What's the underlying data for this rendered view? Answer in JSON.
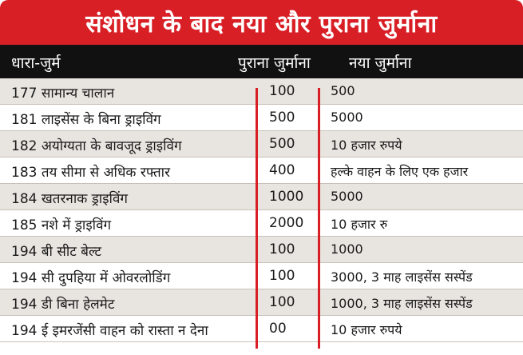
{
  "title": "संशोधन के बाद नया और पुराना जुर्माना",
  "headers": {
    "offence": "धारा-जुर्म",
    "old_fine": "पुराना जुर्माना",
    "new_fine": "नया जुर्माना"
  },
  "rows": [
    {
      "offence": "177 सामान्य चालान",
      "old": "100",
      "new": "500"
    },
    {
      "offence": "181 लाइसेंस के बिना ड्राइविंग",
      "old": "500",
      "new": "5000"
    },
    {
      "offence": "182 अयोग्यता के बावजूद ड्राइविंग",
      "old": "500",
      "new": "10 हजार रुपये"
    },
    {
      "offence": "183 तय सीमा से अधिक रफ्तार",
      "old": "400",
      "new": "हल्के वाहन के लिए एक हजार"
    },
    {
      "offence": "184 खतरनाक ड्राइविंग",
      "old": "1000",
      "new": "5000"
    },
    {
      "offence": "185 नशे में ड्राइविंग",
      "old": "2000",
      "new": "10 हजार रु"
    },
    {
      "offence": "194 बी सीट बेल्ट",
      "old": "100",
      "new": "1000"
    },
    {
      "offence": "194 सी दुपहिया में ओवरलोडिंग",
      "old": "100",
      "new": "3000, 3 माह लाइसेंस सस्पेंड"
    },
    {
      "offence": "194 डी बिना हेलमेट",
      "old": "100",
      "new": "1000, 3 माह लाइसेंस सस्पेंड"
    },
    {
      "offence": "194 ई इमरजेंसी वाहन को रास्ता न देना",
      "old": "00",
      "new": "10 हजार रुपये"
    }
  ],
  "colors": {
    "title_background": "#d91f26",
    "header_background": "#111111",
    "divider": "#d91f26",
    "shaded_row": "#e8e4df"
  }
}
